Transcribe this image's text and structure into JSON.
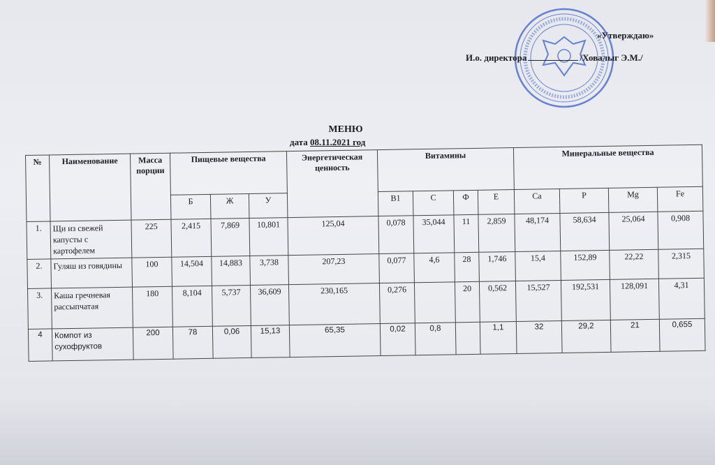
{
  "approval": {
    "approve_label": "«Утверждаю»",
    "position": "И.о. директора",
    "signatory": "/Ховалыг Э.М./"
  },
  "stamp_color": "#3a5fc8",
  "document": {
    "title": "МЕНЮ",
    "date_prefix": "дата",
    "date": "08.11.2021 год"
  },
  "table": {
    "headers": {
      "no": "№",
      "name": "Наименование",
      "mass": "Масса порции",
      "nutrients": "Пищевые вещества",
      "energy": "Энергетическая ценность",
      "vitamins": "Витамины",
      "minerals": "Минеральные вещества"
    },
    "subheaders": [
      "Б",
      "Ж",
      "У",
      "B1",
      "C",
      "Ф",
      "E",
      "Ca",
      "P",
      "Mg",
      "Fe"
    ],
    "rows": [
      {
        "no": "1.",
        "name": "Щи из свежей капусты с картофелем",
        "mass": "225",
        "b": "2,415",
        "zh": "7,869",
        "u": "10,801",
        "energy": "125,04",
        "b1": "0,078",
        "c": "35,044",
        "f": "11",
        "e": "2,859",
        "ca": "48,174",
        "p": "58,634",
        "mg": "25,064",
        "fe": "0,908"
      },
      {
        "no": "2.",
        "name": "Гуляш из говядины",
        "mass": "100",
        "b": "14,504",
        "zh": "14,883",
        "u": "3,738",
        "energy": "207,23",
        "b1": "0,077",
        "c": "4,6",
        "f": "28",
        "e": "1,746",
        "ca": "15,4",
        "p": "152,89",
        "mg": "22,22",
        "fe": "2,315"
      },
      {
        "no": "3.",
        "name": "Каша гречневая рассыпчатая",
        "mass": "180",
        "b": "8,104",
        "zh": "5,737",
        "u": "36,609",
        "energy": "230,165",
        "b1": "0,276",
        "c": "",
        "f": "20",
        "e": "0,562",
        "ca": "15,527",
        "p": "192,531",
        "mg": "128,091",
        "fe": "4,31"
      },
      {
        "no": "4",
        "name": "Компот из сухофруктов",
        "mass": "200",
        "b": "78",
        "zh": "0,06",
        "u": "15,13",
        "energy": "65,35",
        "b1": "0,02",
        "c": "0,8",
        "f": "",
        "e": "1,1",
        "ca": "32",
        "p": "29,2",
        "mg": "21",
        "fe": "0,655"
      }
    ]
  }
}
